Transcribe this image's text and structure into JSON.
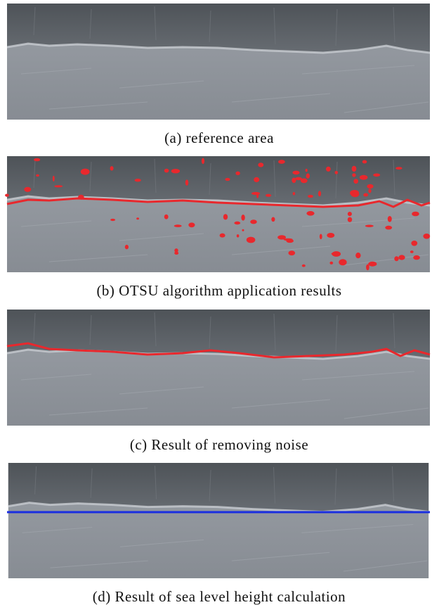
{
  "captions": [
    "(a) reference area",
    "(b) OTSU algorithm application results",
    "(c) Result of removing noise",
    "(d) Result of sea level height calculation"
  ]
}
